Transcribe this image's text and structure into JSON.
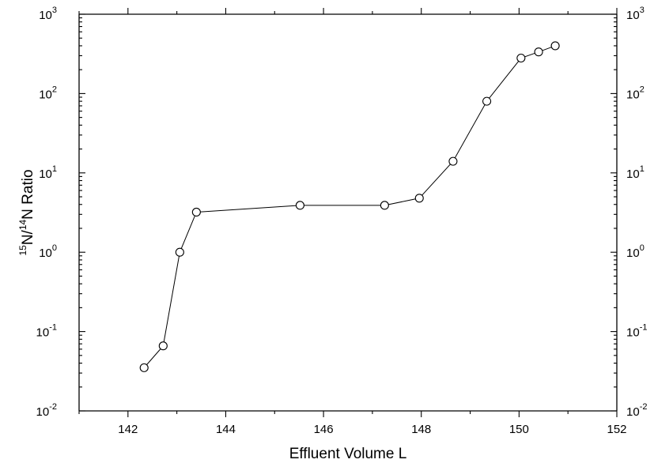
{
  "chart_data": {
    "type": "scatter",
    "title": "",
    "xlabel": "Effluent Volume  L",
    "ylabel_parts": {
      "sup1": "15",
      "mid": "N/",
      "sup2": "14",
      "end": "N Ratio"
    },
    "xlim": [
      141,
      152
    ],
    "ylim": [
      0.01,
      1000
    ],
    "yscale": "log",
    "grid": false,
    "x_ticks": [
      "142",
      "144",
      "146",
      "148",
      "150",
      "152"
    ],
    "y_ticks": [
      {
        "base": "10",
        "exp": "-2"
      },
      {
        "base": "10",
        "exp": "-1"
      },
      {
        "base": "10",
        "exp": "0"
      },
      {
        "base": "10",
        "exp": "1"
      },
      {
        "base": "10",
        "exp": "2"
      },
      {
        "base": "10",
        "exp": "3"
      }
    ],
    "series": [
      {
        "x": [
          142.33,
          142.72,
          143.06,
          143.4,
          145.52,
          147.25,
          147.96,
          148.65,
          149.34,
          150.04,
          150.4,
          150.74
        ],
        "y": [
          0.035,
          0.066,
          1.0,
          3.2,
          3.9,
          3.9,
          4.8,
          14,
          80,
          280,
          335,
          400
        ]
      }
    ]
  }
}
